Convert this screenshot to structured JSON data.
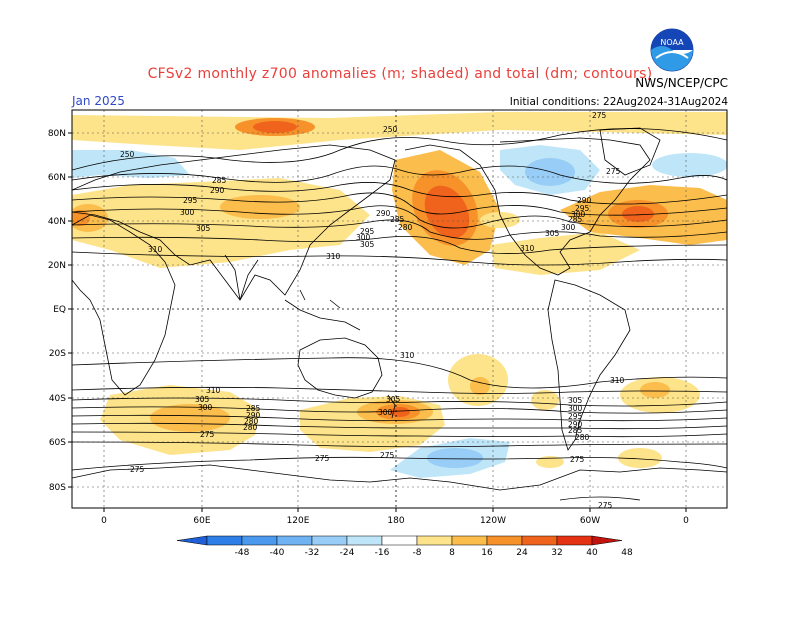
{
  "header": {
    "title": "CFSv2 monthly z700 anomalies (m; shaded) and total (dm; contours)",
    "month": "Jan 2025",
    "agency": "NWS/NCEP/CPC",
    "initial_conditions": "Initial conditions: 22Aug2024-31Aug2024",
    "logo_text": "NOAA"
  },
  "map": {
    "lat_labels": [
      "80N",
      "60N",
      "40N",
      "20N",
      "EQ",
      "20S",
      "40S",
      "60S",
      "80S"
    ],
    "lon_labels": [
      "0",
      "60E",
      "120E",
      "180",
      "120W",
      "60W",
      "0"
    ],
    "contour_labels": [
      "250",
      "275",
      "280",
      "285",
      "290",
      "295",
      "300",
      "305",
      "310"
    ]
  },
  "colorbar": {
    "labels": [
      "-48",
      "-40",
      "-32",
      "-24",
      "-16",
      "-8",
      "8",
      "16",
      "24",
      "32",
      "40",
      "48"
    ],
    "colors": [
      "#1e5fd8",
      "#2e7ee8",
      "#4a99ef",
      "#6fb3f3",
      "#97cdf6",
      "#bfe6f8",
      "#ffffff",
      "#fde38a",
      "#fbbd4c",
      "#f7912a",
      "#f0631c",
      "#e33313",
      "#c2130e"
    ]
  }
}
